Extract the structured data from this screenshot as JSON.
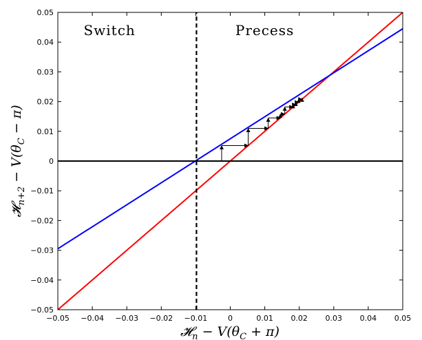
{
  "chart_data": {
    "type": "line",
    "xlabel": "𝓗ₙ − V(θ_C + π)",
    "ylabel": "𝓗ₙ₊₂ − V(θ_C − π)",
    "xlim": [
      -0.05,
      0.05
    ],
    "ylim": [
      -0.05,
      0.05
    ],
    "xticks": [
      -0.05,
      -0.04,
      -0.03,
      -0.02,
      -0.01,
      0,
      0.01,
      0.02,
      0.03,
      0.04,
      0.05
    ],
    "yticks": [
      -0.05,
      -0.04,
      -0.03,
      -0.02,
      -0.01,
      0,
      0.01,
      0.02,
      0.03,
      0.04,
      0.05
    ],
    "xtick_labels": [
      "−0.05",
      "−0.04",
      "−0.03",
      "−0.02",
      "−0.01",
      "0",
      "0.01",
      "0.02",
      "0.03",
      "0.04",
      "0.05"
    ],
    "ytick_labels": [
      "−0.05",
      "−0.04",
      "−0.03",
      "−0.02",
      "−0.01",
      "0",
      "0.01",
      "0.02",
      "0.03",
      "0.04",
      "0.05"
    ],
    "grid": false,
    "regions": [
      {
        "label": "Switch",
        "x": -0.035,
        "y": 0.044
      },
      {
        "label": "Precess",
        "x": 0.01,
        "y": 0.044
      }
    ],
    "series": [
      {
        "color": "#ff0000",
        "style": "solid",
        "x": [
          -0.05,
          0.05
        ],
        "y": [
          -0.05,
          0.05
        ]
      },
      {
        "color": "#0000ff",
        "style": "solid",
        "x": [
          -0.05,
          0.05
        ],
        "y": [
          -0.0295,
          0.0445
        ]
      },
      {
        "color": "#000000",
        "style": "solid",
        "x": [
          -0.05,
          0.05
        ],
        "y": [
          0,
          0
        ]
      },
      {
        "color": "#000000",
        "style": "dashed",
        "x": [
          -0.0098,
          -0.0098
        ],
        "y": [
          -0.05,
          0.05
        ]
      }
    ],
    "cobweb": {
      "color": "#000000",
      "points": [
        [
          -0.0025,
          0
        ],
        [
          -0.0025,
          0.0052
        ],
        [
          0.0052,
          0.0052
        ],
        [
          0.0052,
          0.011
        ],
        [
          0.011,
          0.011
        ],
        [
          0.011,
          0.0145
        ],
        [
          0.0145,
          0.0145
        ],
        [
          0.0145,
          0.0158
        ],
        [
          0.0158,
          0.0158
        ],
        [
          0.0158,
          0.0182
        ],
        [
          0.0182,
          0.0182
        ],
        [
          0.0182,
          0.019
        ],
        [
          0.019,
          0.019
        ],
        [
          0.019,
          0.0198
        ],
        [
          0.0198,
          0.0198
        ],
        [
          0.0198,
          0.0208
        ],
        [
          0.0208,
          0.0208
        ],
        [
          0.0208,
          0.0212
        ]
      ]
    }
  }
}
